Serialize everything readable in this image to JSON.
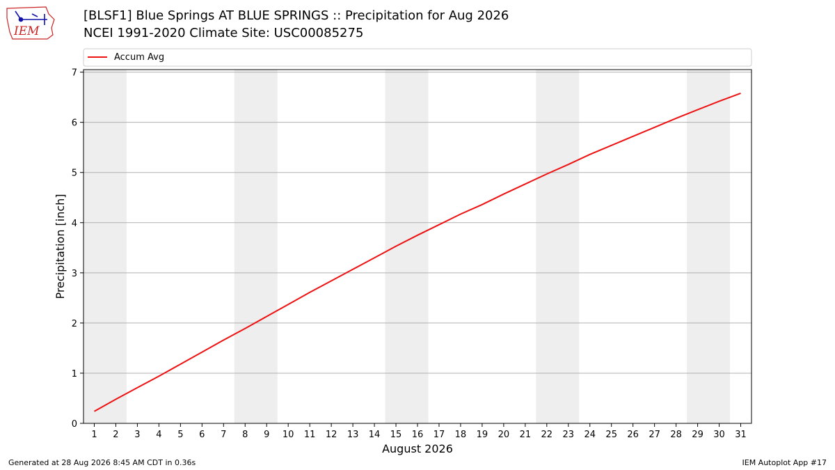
{
  "header": {
    "title_line1": "[BLSF1] Blue Springs  AT BLUE SPRINGS :: Precipitation for Aug 2026",
    "title_line2": "NCEI 1991-2020 Climate Site: USC00085275",
    "logo_text": "IEM"
  },
  "footer": {
    "generated": "Generated at 28 Aug 2026 8:45 AM CDT in 0.36s",
    "app": "IEM Autoplot App #17"
  },
  "colors": {
    "line": "#ee1111",
    "weekend_band": "#eeeeee",
    "grid": "#b0b0b0",
    "logo_text": "#cc2222",
    "logo_symbol": "#1111aa"
  },
  "chart_data": {
    "type": "line",
    "xlabel": "August 2026",
    "ylabel": "Precipitation [inch]",
    "xlim": [
      0.5,
      31.5
    ],
    "ylim": [
      0,
      7.05
    ],
    "x_ticks": [
      1,
      2,
      3,
      4,
      5,
      6,
      7,
      8,
      9,
      10,
      11,
      12,
      13,
      14,
      15,
      16,
      17,
      18,
      19,
      20,
      21,
      22,
      23,
      24,
      25,
      26,
      27,
      28,
      29,
      30,
      31
    ],
    "y_ticks": [
      0,
      1,
      2,
      3,
      4,
      5,
      6,
      7
    ],
    "grid": "horizontal",
    "legend_position": "top",
    "weekend_bands": [
      [
        1,
        2
      ],
      [
        8,
        9
      ],
      [
        15,
        16
      ],
      [
        22,
        23
      ],
      [
        29,
        30
      ]
    ],
    "series": [
      {
        "name": "Accum Avg",
        "x": [
          1,
          2,
          3,
          4,
          5,
          6,
          7,
          8,
          9,
          10,
          11,
          12,
          13,
          14,
          15,
          16,
          17,
          18,
          19,
          20,
          21,
          22,
          23,
          24,
          25,
          26,
          27,
          28,
          29,
          30,
          31
        ],
        "values": [
          0.24,
          0.48,
          0.71,
          0.94,
          1.18,
          1.42,
          1.66,
          1.89,
          2.13,
          2.37,
          2.61,
          2.84,
          3.07,
          3.3,
          3.53,
          3.75,
          3.96,
          4.17,
          4.36,
          4.57,
          4.77,
          4.97,
          5.16,
          5.36,
          5.54,
          5.72,
          5.9,
          6.08,
          6.25,
          6.42,
          6.58
        ]
      }
    ]
  }
}
